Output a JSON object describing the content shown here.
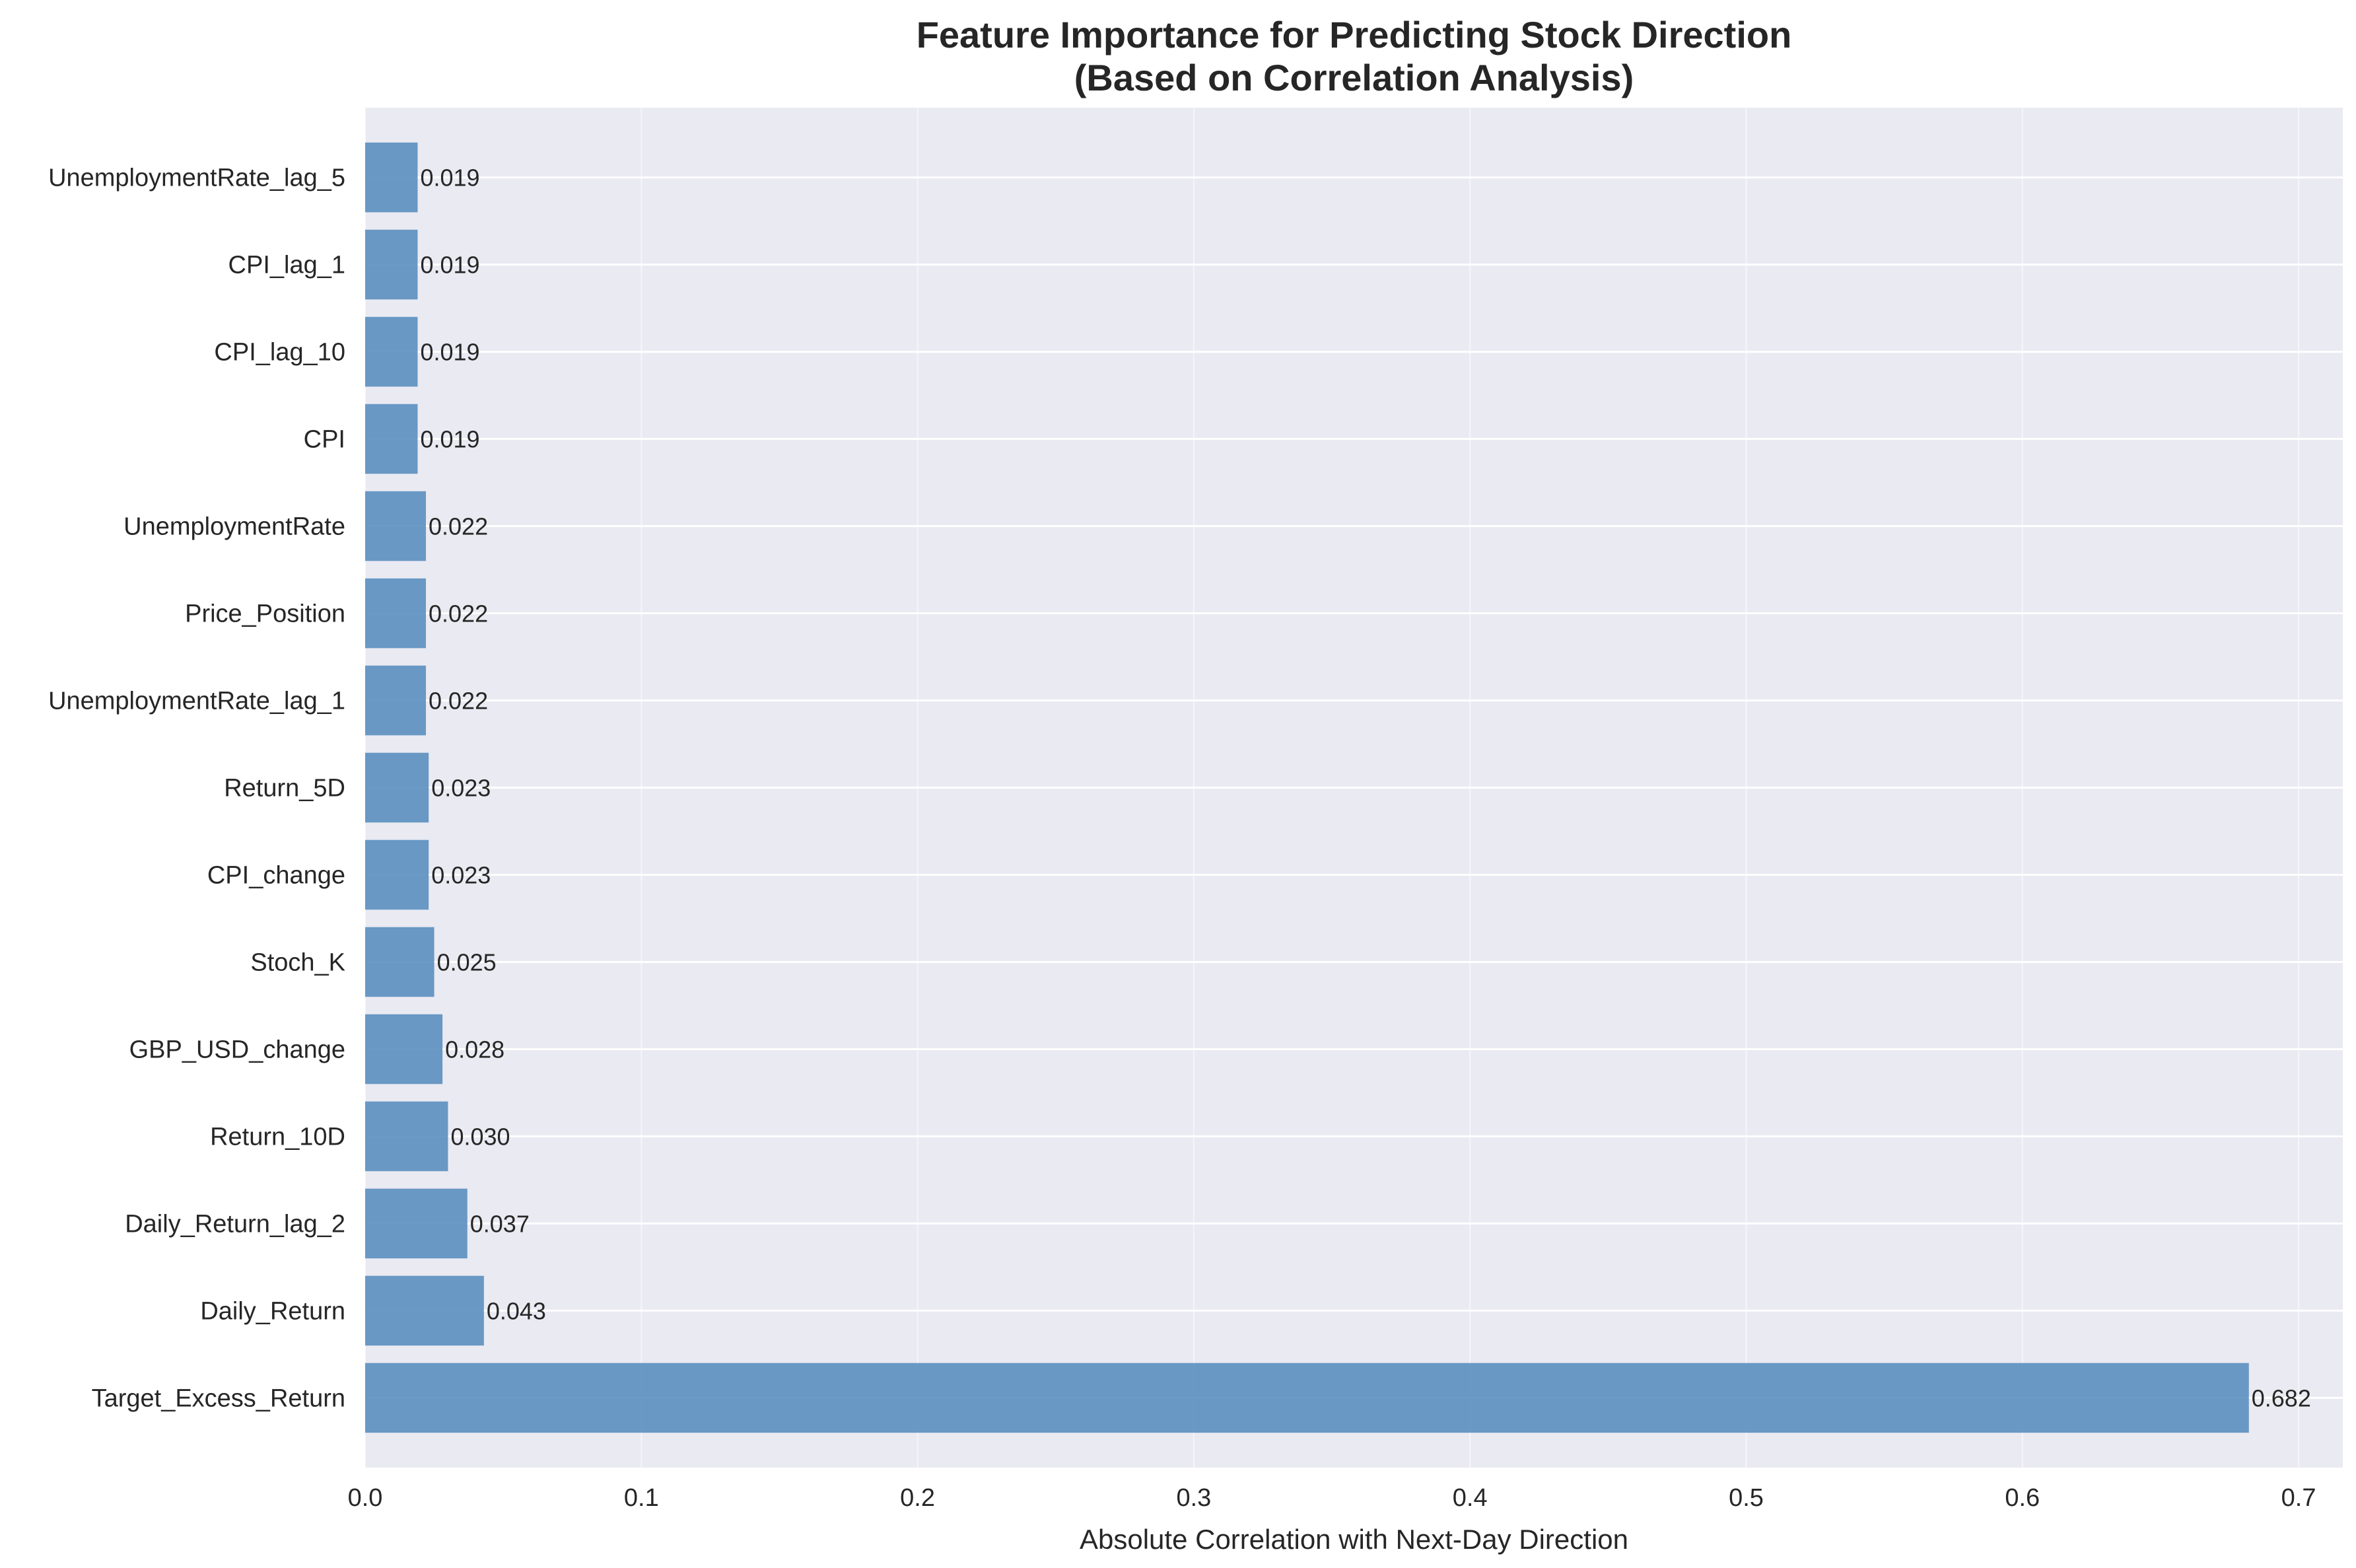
{
  "chart_data": {
    "type": "bar",
    "orientation": "horizontal",
    "title": "Feature Importance for Predicting Stock Direction",
    "subtitle": "(Based on Correlation Analysis)",
    "xlabel": "Absolute Correlation with Next-Day Direction",
    "ylabel": "",
    "xlim": [
      0.0,
      0.716
    ],
    "xticks": [
      "0.0",
      "0.1",
      "0.2",
      "0.3",
      "0.4",
      "0.5",
      "0.6",
      "0.7"
    ],
    "grid": true,
    "bar_color": "#5b8fbf",
    "plot_background": "#eaeaf2",
    "categories": [
      "Target_Excess_Return",
      "Daily_Return",
      "Daily_Return_lag_2",
      "Return_10D",
      "GBP_USD_change",
      "Stoch_K",
      "CPI_change",
      "Return_5D",
      "UnemploymentRate_lag_1",
      "Price_Position",
      "UnemploymentRate",
      "CPI",
      "CPI_lag_10",
      "CPI_lag_1",
      "UnemploymentRate_lag_5"
    ],
    "values": [
      0.682,
      0.043,
      0.037,
      0.03,
      0.028,
      0.025,
      0.023,
      0.023,
      0.022,
      0.022,
      0.022,
      0.019,
      0.019,
      0.019,
      0.019
    ],
    "value_labels": [
      "0.682",
      "0.043",
      "0.037",
      "0.030",
      "0.028",
      "0.025",
      "0.023",
      "0.023",
      "0.022",
      "0.022",
      "0.022",
      "0.019",
      "0.019",
      "0.019",
      "0.019"
    ]
  }
}
